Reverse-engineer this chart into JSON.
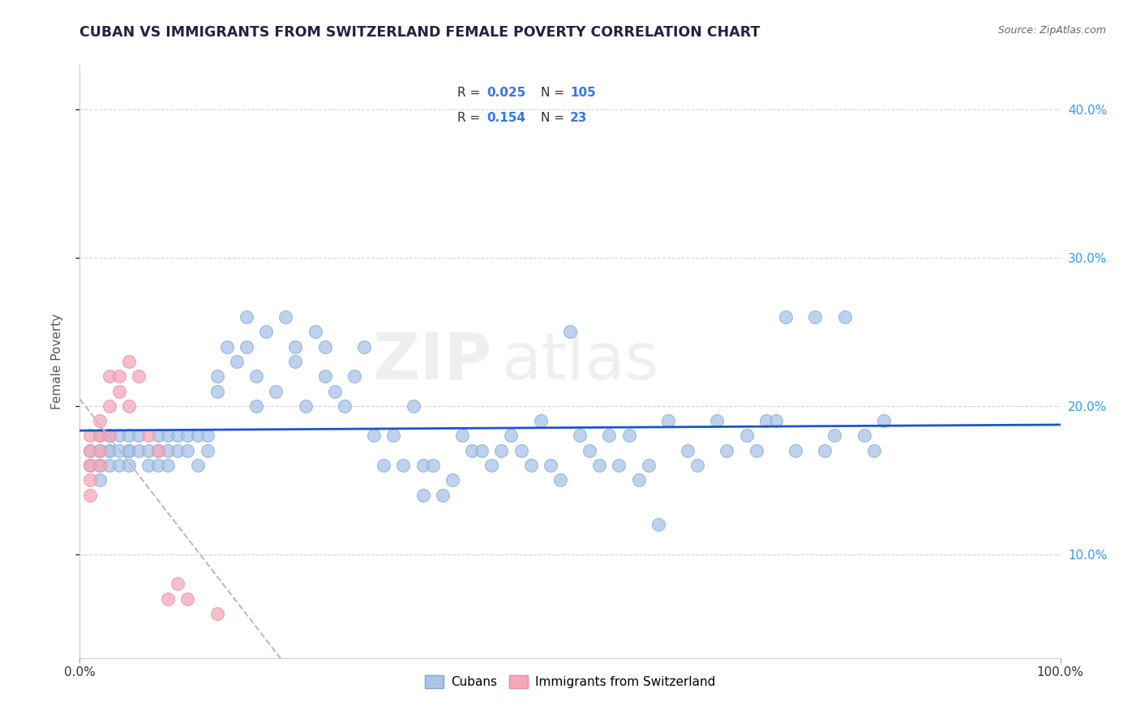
{
  "title": "CUBAN VS IMMIGRANTS FROM SWITZERLAND FEMALE POVERTY CORRELATION CHART",
  "source": "Source: ZipAtlas.com",
  "xlim": [
    0,
    100
  ],
  "ylim": [
    3,
    43
  ],
  "ylabel": "Female Poverty",
  "R_cuban": "0.025",
  "N_cuban": "105",
  "R_swiss": "0.154",
  "N_swiss": "23",
  "watermark_line1": "ZIP",
  "watermark_line2": "atlas",
  "bg_color": "#ffffff",
  "grid_color": "#cccccc",
  "trend_cuban_color": "#1a56cc",
  "trend_swiss_color": "#bbbbbb",
  "scatter_cuban_color": "#aac4e8",
  "scatter_swiss_color": "#f5a8b8",
  "scatter_cuban_edge": "#7aaad4",
  "scatter_swiss_edge": "#e888a8",
  "cubans_x": [
    1,
    1,
    2,
    2,
    2,
    2,
    3,
    3,
    3,
    3,
    4,
    4,
    4,
    5,
    5,
    5,
    5,
    6,
    6,
    7,
    7,
    8,
    8,
    8,
    9,
    9,
    9,
    10,
    10,
    11,
    11,
    12,
    12,
    13,
    13,
    14,
    14,
    15,
    16,
    17,
    17,
    18,
    18,
    19,
    20,
    21,
    22,
    22,
    23,
    24,
    25,
    25,
    26,
    27,
    28,
    29,
    30,
    31,
    32,
    33,
    34,
    35,
    35,
    36,
    37,
    38,
    39,
    40,
    41,
    42,
    43,
    44,
    45,
    46,
    47,
    48,
    49,
    50,
    51,
    52,
    53,
    54,
    55,
    56,
    57,
    58,
    59,
    60,
    62,
    63,
    65,
    66,
    68,
    69,
    70,
    71,
    72,
    73,
    75,
    76,
    77,
    78,
    80,
    81,
    82
  ],
  "cubans_y": [
    17,
    16,
    18,
    17,
    16,
    15,
    17,
    16,
    18,
    17,
    17,
    16,
    18,
    17,
    18,
    17,
    16,
    18,
    17,
    16,
    17,
    18,
    17,
    16,
    17,
    16,
    18,
    17,
    18,
    18,
    17,
    18,
    16,
    17,
    18,
    22,
    21,
    24,
    23,
    24,
    26,
    22,
    20,
    25,
    21,
    26,
    23,
    24,
    20,
    25,
    22,
    24,
    21,
    20,
    22,
    24,
    18,
    16,
    18,
    16,
    20,
    16,
    14,
    16,
    14,
    15,
    18,
    17,
    17,
    16,
    17,
    18,
    17,
    16,
    19,
    16,
    15,
    25,
    18,
    17,
    16,
    18,
    16,
    18,
    15,
    16,
    12,
    19,
    17,
    16,
    19,
    17,
    18,
    17,
    19,
    19,
    26,
    17,
    26,
    17,
    18,
    26,
    18,
    17,
    19
  ],
  "swiss_x": [
    1,
    1,
    1,
    1,
    1,
    2,
    2,
    2,
    2,
    3,
    3,
    3,
    4,
    4,
    5,
    5,
    6,
    7,
    8,
    9,
    10,
    11,
    14
  ],
  "swiss_y": [
    17,
    18,
    16,
    15,
    14,
    19,
    18,
    17,
    16,
    20,
    18,
    22,
    21,
    22,
    23,
    20,
    22,
    18,
    17,
    7,
    8,
    7,
    6
  ]
}
